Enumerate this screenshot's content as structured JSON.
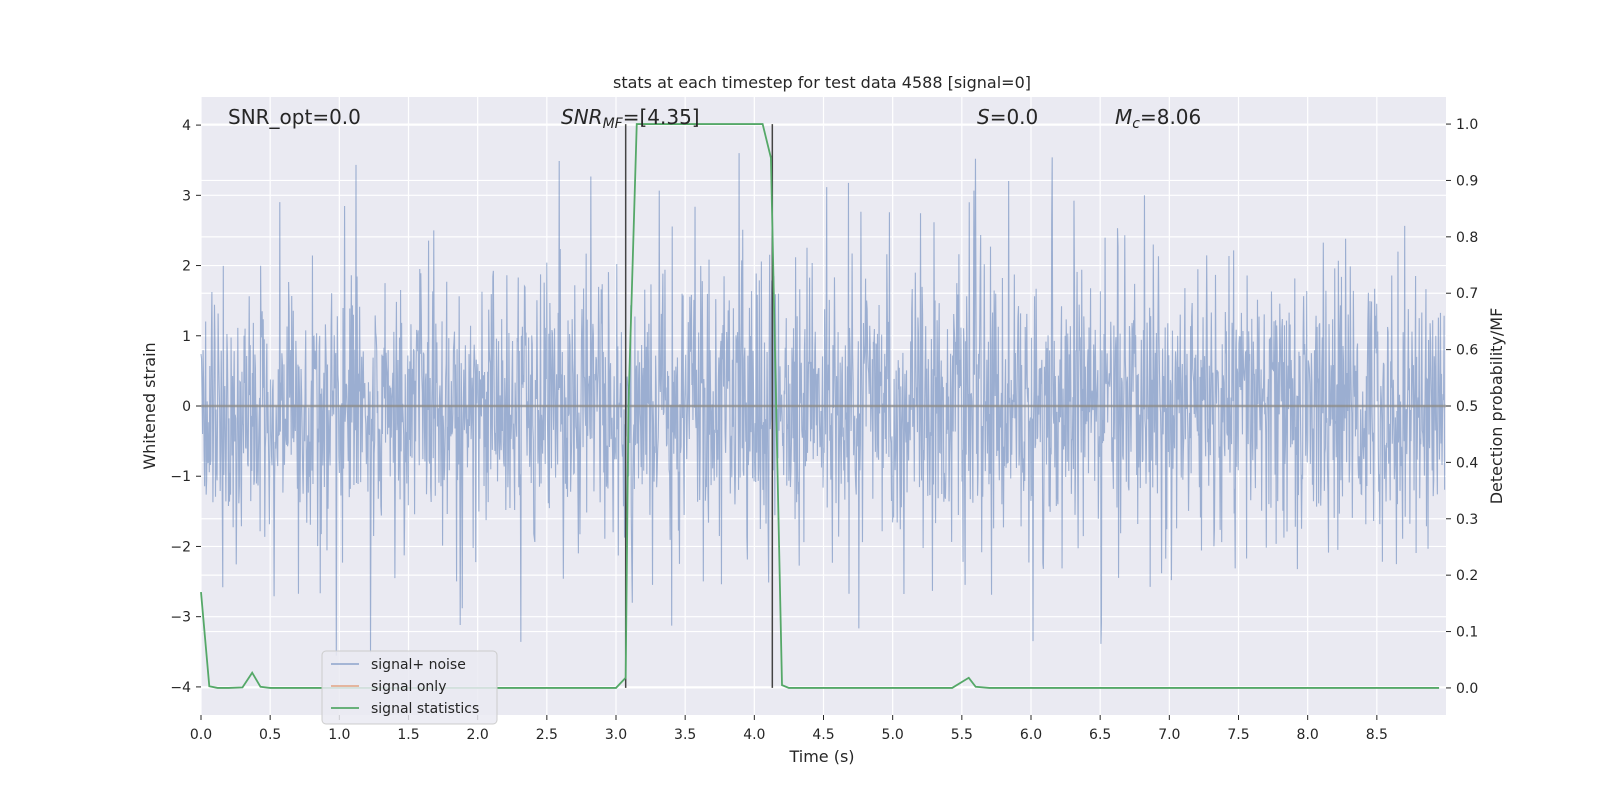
{
  "chart_data": {
    "type": "line",
    "title": "stats at each timestep for test data 4588 [signal=0]",
    "xlabel": "Time (s)",
    "ylabel": "Whitened strain",
    "ylabel_right": "Detection probability/MF",
    "xlim": [
      0,
      9.0
    ],
    "ylim": [
      -4.4,
      4.4
    ],
    "ylim_right": [
      -0.048,
      1.048
    ],
    "x_ticks": [
      "0.0",
      "0.5",
      "1.0",
      "1.5",
      "2.0",
      "2.5",
      "3.0",
      "3.5",
      "4.0",
      "4.5",
      "5.0",
      "5.5",
      "6.0",
      "6.5",
      "7.0",
      "7.5",
      "8.0",
      "8.5"
    ],
    "y_ticks": [
      "-4",
      "-3",
      "-2",
      "-1",
      "0",
      "1",
      "2",
      "3",
      "4"
    ],
    "y_ticks_right": [
      "0.0",
      "0.1",
      "0.2",
      "0.3",
      "0.4",
      "0.5",
      "0.6",
      "0.7",
      "0.8",
      "0.9",
      "1.0"
    ],
    "grid": true,
    "legend_position": "bottom-left",
    "annotations": {
      "snr_opt": "SNR_opt=0.0",
      "snr_mf_main": "SNR",
      "snr_mf_sub": "MF",
      "snr_mf_value": "=[4.35]",
      "s_main": "S",
      "s_value": "=0.0",
      "mc_main": "M",
      "mc_sub": "c",
      "mc_value": "=8.06"
    },
    "vertical_lines": [
      3.07,
      4.13
    ],
    "series": [
      {
        "name": "signal+ noise",
        "color": "#4c72b0",
        "description": "whitened noise, sampled 0–8.99 s, mostly within ±2.5 with peaks to ±3.6",
        "envelope": {
          "typical_abs": 2.5,
          "peak_abs": 3.6
        }
      },
      {
        "name": "signal only",
        "color": "#dd8452",
        "values_constant": 0.0
      },
      {
        "name": "signal statistics",
        "color": "#55a868",
        "x": [
          0.0,
          0.06,
          0.12,
          0.2,
          0.3,
          0.37,
          0.43,
          0.5,
          1.0,
          1.5,
          2.0,
          2.5,
          3.0,
          3.07,
          3.09,
          3.15,
          3.5,
          4.0,
          4.06,
          4.12,
          4.2,
          4.25,
          4.5,
          5.0,
          5.43,
          5.55,
          5.6,
          5.7,
          6.0,
          6.5,
          7.0,
          7.5,
          8.0,
          8.5,
          8.95
        ],
        "values": [
          0.17,
          0.003,
          0.0,
          0.0,
          0.001,
          0.027,
          0.002,
          0.0,
          0.0,
          0.0,
          0.0,
          0.0,
          0.0,
          0.018,
          0.5,
          1.0,
          1.0,
          1.0,
          1.0,
          0.94,
          0.005,
          0.0,
          0.0,
          0.0,
          0.0,
          0.018,
          0.002,
          0.0,
          0.0,
          0.0,
          0.0,
          0.0,
          0.0,
          0.0,
          0.0
        ]
      }
    ]
  }
}
